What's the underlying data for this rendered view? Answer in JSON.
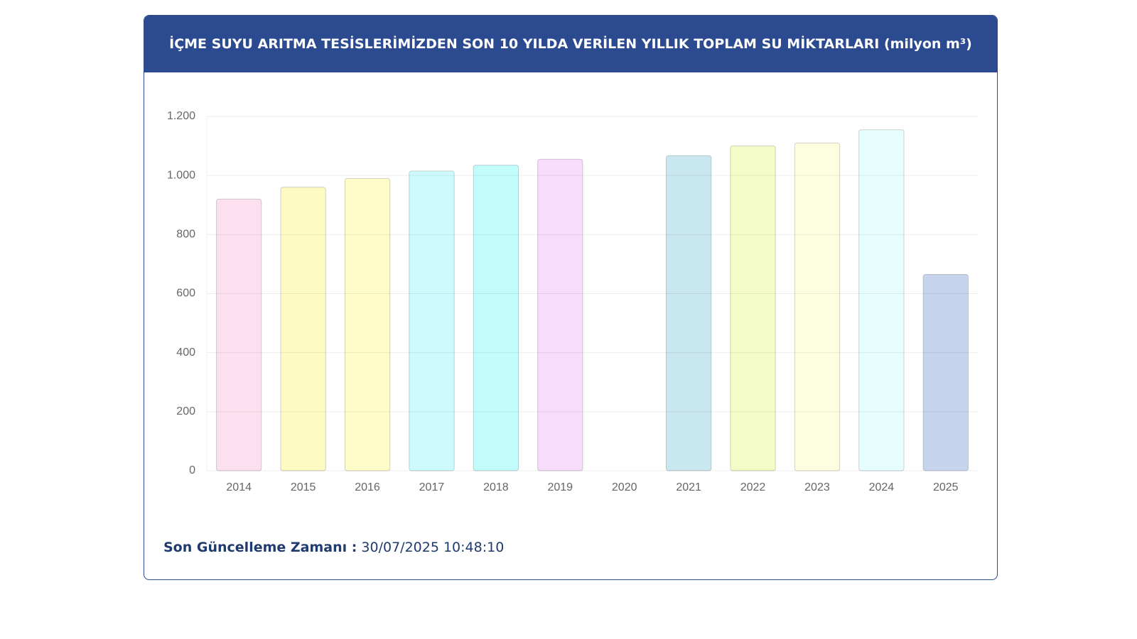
{
  "chart_data": {
    "type": "bar",
    "title": "İÇME SUYU ARITMA TESİSLERİMİZDEN SON 10 YILDA VERİLEN YILLIK TOPLAM SU MİKTARLARI (milyon m³)",
    "categories": [
      "2014",
      "2015",
      "2016",
      "2017",
      "2018",
      "2019",
      "2020",
      "2021",
      "2022",
      "2023",
      "2024",
      "2025"
    ],
    "values": [
      920,
      960,
      990,
      1015,
      1035,
      1055,
      null,
      1067,
      1100,
      1110,
      1155,
      665
    ],
    "colors": [
      "#fde0ef",
      "#fdfac4",
      "#fefcc8",
      "#cdfbfd",
      "#c1fcfb",
      "#f7dcfc",
      null,
      "#c9e7ee",
      "#f3fcc6",
      "#fdfee0",
      "#e6fefe",
      "#c6d5ed"
    ],
    "ylim": [
      0,
      1200
    ],
    "yticks": [
      0,
      200,
      400,
      600,
      800,
      {
        "value": 1000,
        "label": "1.000"
      },
      {
        "value": 1200,
        "label": "1.200"
      }
    ],
    "grid": true
  },
  "footer": {
    "label": "Son Güncelleme Zamanı :",
    "value": "30/07/2025 10:48:10"
  }
}
